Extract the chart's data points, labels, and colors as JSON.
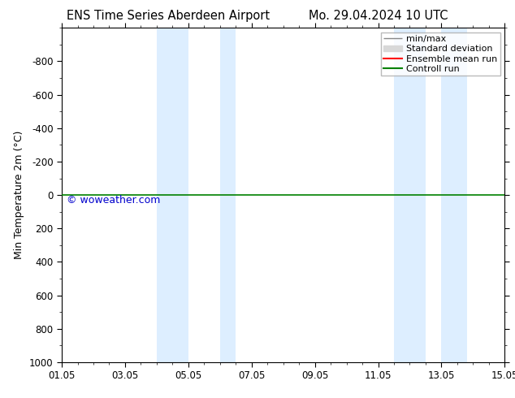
{
  "title_left": "ENS Time Series Aberdeen Airport",
  "title_right": "Mo. 29.04.2024 10 UTC",
  "ylabel": "Min Temperature 2m (°C)",
  "watermark": "© woweather.com",
  "ylim_top": -1000,
  "ylim_bottom": 1000,
  "yticks": [
    -800,
    -600,
    -400,
    -200,
    0,
    200,
    400,
    600,
    800,
    1000
  ],
  "x_start": 0,
  "x_end": 14,
  "xtick_labels": [
    "01.05",
    "03.05",
    "05.05",
    "07.05",
    "09.05",
    "11.05",
    "13.05",
    "15.05"
  ],
  "xtick_positions": [
    0,
    2,
    4,
    6,
    8,
    10,
    12,
    14
  ],
  "blue_bands": [
    [
      3.0,
      4.0
    ],
    [
      5.0,
      5.5
    ],
    [
      10.5,
      11.5
    ],
    [
      12.0,
      12.8
    ]
  ],
  "control_run_y": 0,
  "control_run_color": "#008000",
  "ensemble_mean_color": "#ff0000",
  "minmax_color": "#888888",
  "std_dev_color": "#d8d8d8",
  "background_color": "#ffffff",
  "plot_bg_color": "#ffffff",
  "blue_band_color": "#ddeeff",
  "watermark_color": "#0000cc",
  "title_fontsize": 10.5,
  "tick_fontsize": 8.5,
  "label_fontsize": 9,
  "legend_fontsize": 8
}
